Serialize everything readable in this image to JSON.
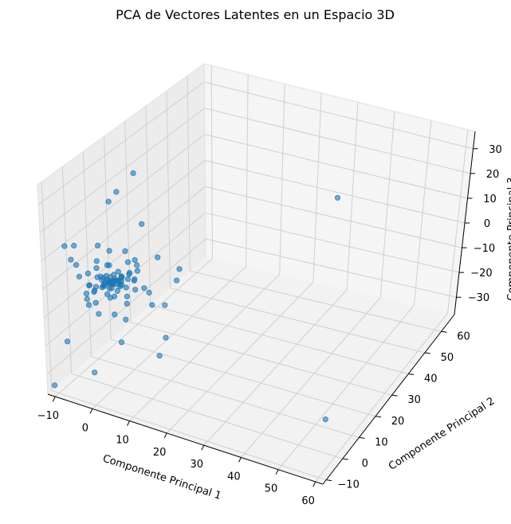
{
  "chart_data": {
    "type": "scatter3d",
    "title": "PCA de Vectores Latentes en un Espacio 3D",
    "xlabel": "Componente Principal 1",
    "ylabel": "Componente Principal 2",
    "zlabel": "Componente Principal 3",
    "xticks": [
      "−10",
      "0",
      "10",
      "20",
      "30",
      "40",
      "50",
      "60"
    ],
    "yticks": [
      "−10",
      "0",
      "10",
      "20",
      "30",
      "40",
      "50",
      "60"
    ],
    "zticks": [
      "−30",
      "−20",
      "−10",
      "0",
      "10",
      "20",
      "30"
    ],
    "xlim": [
      -12,
      62
    ],
    "ylim": [
      -12,
      68
    ],
    "zlim": [
      -37,
      37
    ],
    "grid": true,
    "point_color": "#1f77b4",
    "points": [
      [
        0,
        0,
        0
      ],
      [
        0.5,
        0.5,
        0.5
      ],
      [
        -0.5,
        -0.5,
        0.2
      ],
      [
        1,
        0.3,
        -0.4
      ],
      [
        0.3,
        1,
        0.8
      ],
      [
        -1,
        0.5,
        -0.6
      ],
      [
        0.8,
        -0.8,
        0.1
      ],
      [
        -0.6,
        -1,
        1.2
      ],
      [
        1.5,
        1.2,
        -1
      ],
      [
        -1.2,
        1.5,
        0.6
      ],
      [
        0.2,
        -1.5,
        -1.2
      ],
      [
        1.8,
        -0.3,
        1.5
      ],
      [
        -1.8,
        -0.2,
        -1.8
      ],
      [
        0.6,
        1.8,
        -0.3
      ],
      [
        -0.3,
        -1.8,
        1.8
      ],
      [
        2,
        1,
        0.5
      ],
      [
        -2,
        1,
        1
      ],
      [
        1,
        -2,
        -0.5
      ],
      [
        -1,
        -2,
        0.4
      ],
      [
        2.2,
        -1.4,
        -1.4
      ],
      [
        -2.2,
        -1.4,
        2.1
      ],
      [
        1.4,
        2.2,
        1.4
      ],
      [
        -1.4,
        2.2,
        -2.1
      ],
      [
        2.5,
        0.5,
        2.5
      ],
      [
        -2.5,
        0.3,
        -2.3
      ],
      [
        0.4,
        2.6,
        2.4
      ],
      [
        0.1,
        -2.6,
        -2.6
      ],
      [
        3,
        1.5,
        -1.6
      ],
      [
        -3,
        -1.5,
        1.6
      ],
      [
        1.5,
        -3,
        2.8
      ],
      [
        -1.5,
        3,
        -2.8
      ],
      [
        3.2,
        -1,
        0.9
      ],
      [
        -3.2,
        1,
        -0.9
      ],
      [
        0.9,
        3.2,
        0.2
      ],
      [
        -0.9,
        -3.2,
        -0.2
      ],
      [
        3.5,
        2.5,
        3.2
      ],
      [
        -3.5,
        -2.5,
        -3.2
      ],
      [
        2.5,
        -3.5,
        -2
      ],
      [
        -2.5,
        3.5,
        3.1
      ],
      [
        4,
        0,
        -3.5
      ],
      [
        -4,
        0,
        3.6
      ],
      [
        0,
        4,
        -3.8
      ],
      [
        0,
        -4,
        3.9
      ],
      [
        4.5,
        3,
        1
      ],
      [
        -4.5,
        -3,
        -1
      ],
      [
        3,
        -4.5,
        4.2
      ],
      [
        -3,
        4.5,
        -4.2
      ],
      [
        5,
        -2,
        -4.5
      ],
      [
        -5,
        2,
        4.6
      ],
      [
        2,
        5,
        0.7
      ],
      [
        -2,
        -5,
        -0.7
      ],
      [
        5.5,
        1,
        2
      ],
      [
        -5.5,
        -1,
        -2.4
      ],
      [
        1,
        -5.5,
        3
      ],
      [
        -1,
        5.5,
        -3.2
      ],
      [
        6,
        -3,
        5
      ],
      [
        -6,
        3,
        -5.5
      ],
      [
        3,
        6,
        -5
      ],
      [
        -3,
        -6,
        5.5
      ],
      [
        6.5,
        4,
        -2
      ],
      [
        -6.5,
        -4,
        2
      ],
      [
        4,
        -6.5,
        -6
      ],
      [
        -4,
        6.5,
        6
      ],
      [
        7,
        0,
        6.5
      ],
      [
        -7,
        0,
        -6.5
      ],
      [
        0,
        7,
        7
      ],
      [
        0,
        -7,
        -7
      ],
      [
        8,
        5,
        -8
      ],
      [
        -8,
        -5,
        8
      ],
      [
        5,
        -8,
        9
      ],
      [
        -8,
        2,
        -10
      ],
      [
        8,
        -2,
        10
      ],
      [
        2,
        8,
        4
      ],
      [
        -2,
        -8,
        -4
      ],
      [
        4,
        -1,
        -11
      ],
      [
        -4,
        1,
        11
      ],
      [
        10,
        0,
        0
      ],
      [
        -10,
        1,
        2
      ],
      [
        1,
        -10,
        -1
      ],
      [
        -1,
        10,
        1
      ],
      [
        6,
        12,
        4
      ],
      [
        -5,
        8,
        -12
      ],
      [
        3,
        10,
        16
      ],
      [
        12,
        4,
        -6
      ],
      [
        -9,
        -6,
        13
      ],
      [
        7,
        -9,
        -13
      ],
      [
        14,
        8,
        5
      ],
      [
        -2,
        -14,
        20
      ],
      [
        -3,
        9,
        26
      ],
      [
        15,
        -5,
        -17
      ],
      [
        10,
        14,
        -4
      ],
      [
        1,
        -12,
        -24
      ],
      [
        -8,
        14,
        18
      ],
      [
        45,
        30,
        28
      ],
      [
        55,
        5,
        -30
      ],
      [
        -10,
        -12,
        -33
      ],
      [
        0,
        12,
        32
      ],
      [
        11,
        6,
        -19
      ],
      [
        5,
        -11,
        14
      ],
      [
        -6,
        -12,
        -16
      ]
    ]
  }
}
